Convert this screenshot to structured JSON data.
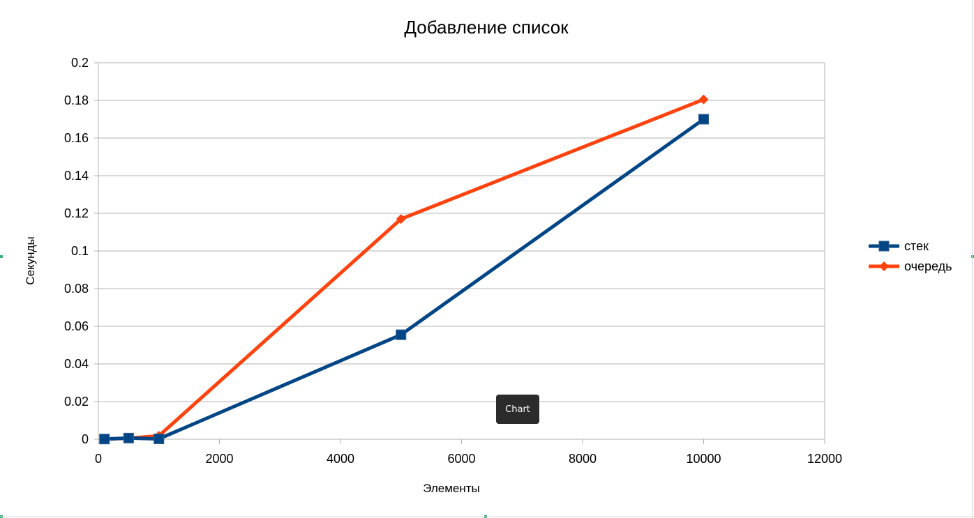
{
  "chart_data": {
    "type": "line",
    "title": "Добавление список",
    "xlabel": "Элементы",
    "ylabel": "Секунды",
    "xlim": [
      0,
      12000
    ],
    "ylim": [
      0,
      0.2
    ],
    "x_ticks": [
      "0",
      "2000",
      "4000",
      "6000",
      "8000",
      "10000",
      "12000"
    ],
    "y_ticks": [
      "0",
      "0.02",
      "0.04",
      "0.06",
      "0.08",
      "0.1",
      "0.12",
      "0.14",
      "0.16",
      "0.18",
      "0.2"
    ],
    "grid": "horizontal",
    "legend_position": "right",
    "series": [
      {
        "name": "стек",
        "color": "#004586",
        "marker": "square",
        "x": [
          100,
          500,
          1000,
          5000,
          10000
        ],
        "y": [
          0.0001,
          0.0006,
          0.0002,
          0.0555,
          0.17
        ]
      },
      {
        "name": "очередь",
        "color": "#ff420e",
        "marker": "diamond",
        "x": [
          100,
          500,
          1000,
          5000,
          10000
        ],
        "y": [
          0.0001,
          0.0005,
          0.0018,
          0.117,
          0.1805
        ]
      }
    ]
  },
  "tooltip": {
    "label": "Chart"
  }
}
